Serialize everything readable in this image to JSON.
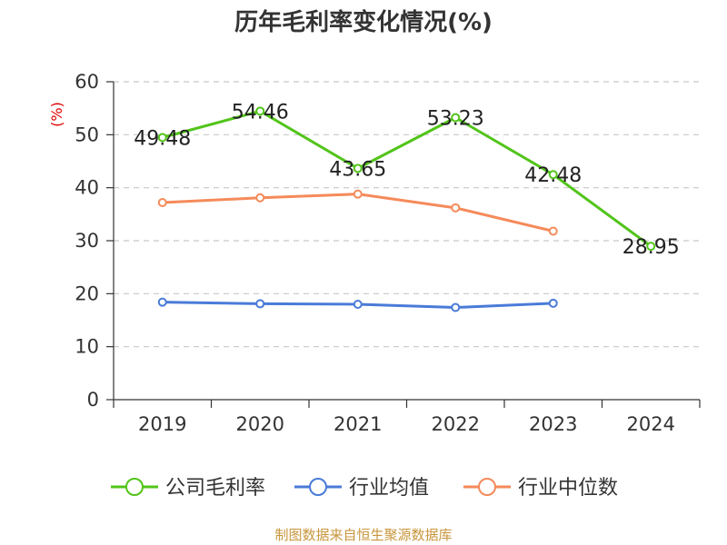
{
  "chart_data": {
    "type": "line",
    "title": "历年毛利率变化情况(%)",
    "ylabel": "(%)",
    "xlabel": "",
    "categories": [
      "2019",
      "2020",
      "2021",
      "2022",
      "2023",
      "2024"
    ],
    "ylim": [
      0,
      60
    ],
    "yticks": [
      0,
      10,
      20,
      30,
      40,
      50,
      60
    ],
    "grid": true,
    "legend_position": "bottom",
    "series": [
      {
        "name": "公司毛利率",
        "color": "#52c41a",
        "values": [
          49.48,
          54.46,
          43.65,
          53.23,
          42.48,
          28.95
        ],
        "labels": [
          "49.48",
          "54.46",
          "43.65",
          "53.23",
          "42.48",
          "28.95"
        ]
      },
      {
        "name": "行业均值",
        "color": "#4a7bd8",
        "values": [
          18.4,
          18.1,
          18.0,
          17.4,
          18.2,
          null
        ],
        "labels": null
      },
      {
        "name": "行业中位数",
        "color": "#f58a5a",
        "values": [
          37.2,
          38.1,
          38.8,
          36.2,
          31.8,
          null
        ],
        "labels": null
      }
    ]
  },
  "footer": {
    "source": "制图数据来自恒生聚源数据库"
  }
}
